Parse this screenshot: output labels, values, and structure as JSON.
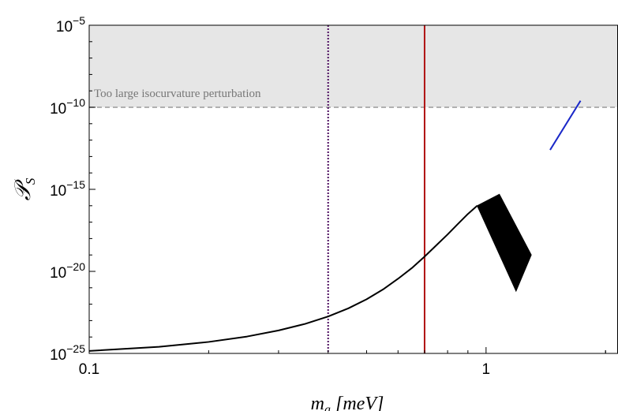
{
  "chart_data": {
    "type": "line",
    "title": "",
    "xlabel": "m_a [meV]",
    "ylabel": "𝒫_S",
    "x_scale": "log",
    "y_scale": "log",
    "xlim": [
      0.1,
      2.15
    ],
    "ylim_exponent": [
      -25,
      -5
    ],
    "x_ticks": [
      {
        "value": 0.1,
        "label": "0.1"
      },
      {
        "value": 1,
        "label": "1"
      }
    ],
    "y_ticks": [
      {
        "exponent": -25,
        "base": "10",
        "sup": "−25"
      },
      {
        "exponent": -20,
        "base": "10",
        "sup": "−20"
      },
      {
        "exponent": -15,
        "base": "10",
        "sup": "−15"
      },
      {
        "exponent": -10,
        "base": "10",
        "sup": "−10"
      },
      {
        "exponent": -5,
        "base": "10",
        "sup": "−5"
      }
    ],
    "excluded_region": {
      "label": "Too large isocurvature perturbation",
      "y_min_exponent": -10,
      "y_max_exponent": -5,
      "fill": "#e6e6e6",
      "boundary_color": "#999999"
    },
    "vertical_lines": [
      {
        "x": 0.4,
        "style": "dotted",
        "color": "#4b0a5e"
      },
      {
        "x": 0.7,
        "style": "solid",
        "color": "#b01212"
      }
    ],
    "series": [
      {
        "style": "line",
        "color": "#000000",
        "x": [
          0.1,
          0.15,
          0.2,
          0.25,
          0.3,
          0.35,
          0.4,
          0.45,
          0.5,
          0.55,
          0.6,
          0.65,
          0.7,
          0.75,
          0.8,
          0.85,
          0.9,
          0.95
        ],
        "log10_y": [
          -24.85,
          -24.6,
          -24.3,
          -23.97,
          -23.6,
          -23.2,
          -22.75,
          -22.25,
          -21.7,
          -21.1,
          -20.45,
          -19.8,
          -19.1,
          -18.4,
          -17.75,
          -17.1,
          -16.5,
          -16.0
        ]
      },
      {
        "style": "band",
        "color": "#000000",
        "x": [
          0.95,
          1.08,
          1.3,
          1.19
        ],
        "log10_y": [
          -16.0,
          -15.3,
          -19.0,
          -21.2
        ]
      },
      {
        "style": "line",
        "color": "#1a28c8",
        "x": [
          1.45,
          1.73
        ],
        "log10_y": [
          -12.6,
          -9.6
        ]
      }
    ]
  }
}
